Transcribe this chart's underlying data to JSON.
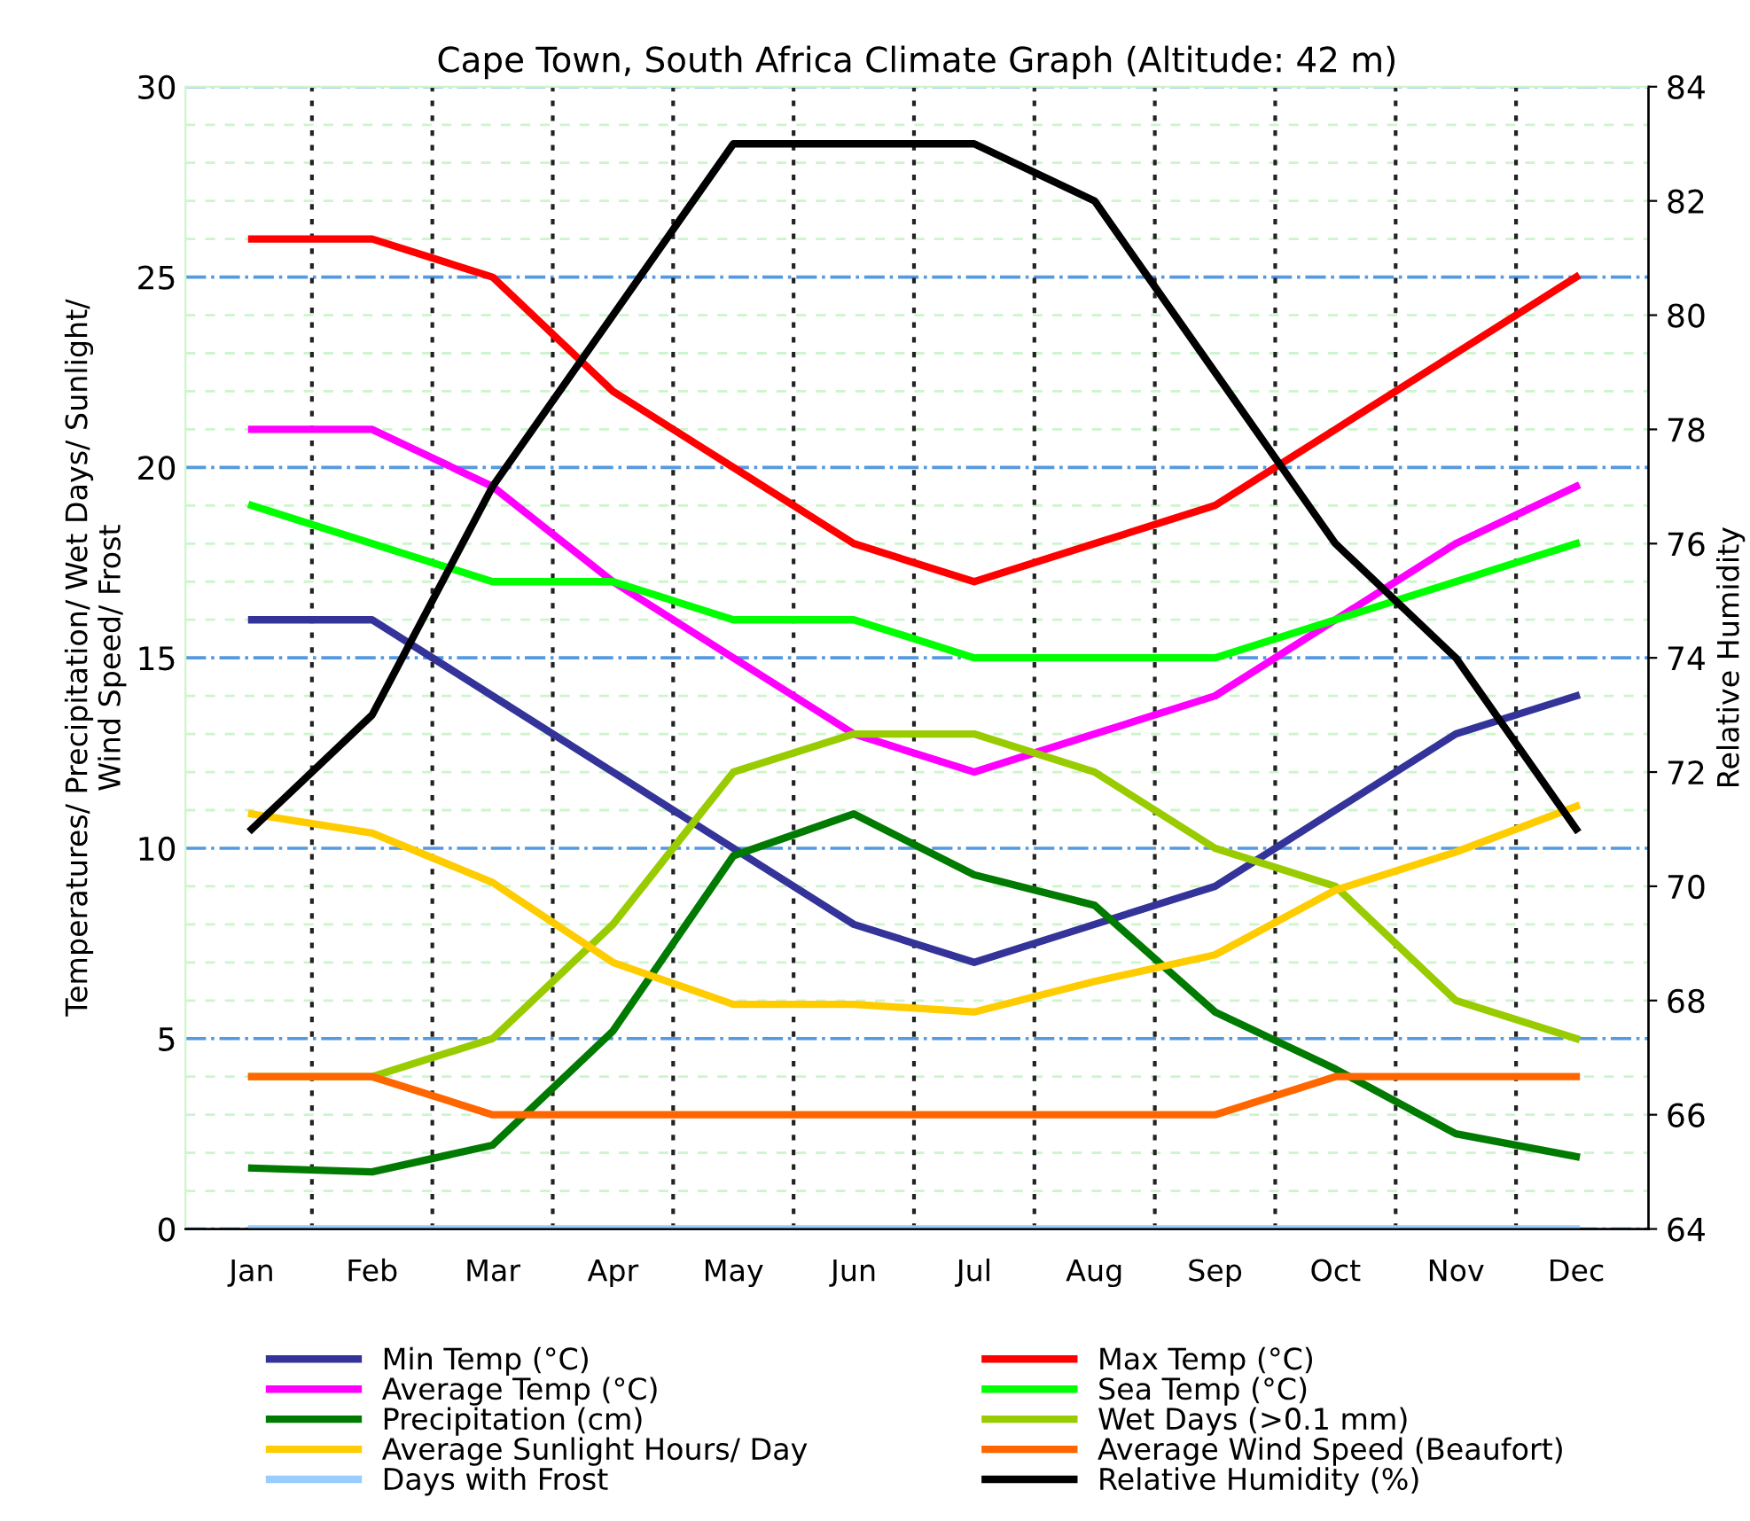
{
  "chart_data": {
    "type": "line",
    "title": "Cape Town, South Africa Climate Graph (Altitude: 42 m)",
    "ylabel": "Temperatures/ Precipitation/ Wet Days/ Sunlight/\nWind Speed/ Frost",
    "y2label": "Relative Humidity",
    "categories": [
      "Jan",
      "Feb",
      "Mar",
      "Apr",
      "May",
      "Jun",
      "Jul",
      "Aug",
      "Sep",
      "Oct",
      "Nov",
      "Dec"
    ],
    "ylim": [
      0,
      30
    ],
    "yticks": [
      0,
      5,
      10,
      15,
      20,
      25,
      30
    ],
    "y2lim": [
      64,
      84
    ],
    "y2ticks": [
      64,
      66,
      68,
      70,
      72,
      74,
      76,
      78,
      80,
      82,
      84
    ],
    "grid": true,
    "legend": "bottom",
    "marker": "none",
    "line_style": "solid",
    "series": [
      {
        "name": "Min Temp (°C)",
        "color": "#333399",
        "values": [
          16,
          16,
          14,
          12,
          10,
          8,
          7,
          8,
          9,
          11,
          13,
          14
        ]
      },
      {
        "name": "Max Temp (°C)",
        "color": "#ff0000",
        "values": [
          26,
          26,
          25,
          22,
          20,
          18,
          17,
          18,
          19,
          21,
          23,
          25
        ]
      },
      {
        "name": "Average Temp (°C)",
        "color": "#ff00ff",
        "values": [
          21,
          21,
          19.5,
          17,
          15,
          13,
          12,
          13,
          14,
          16,
          18,
          19.5
        ]
      },
      {
        "name": "Sea Temp (°C)",
        "color": "#00ff00",
        "values": [
          19,
          18,
          17,
          17,
          16,
          16,
          15,
          15,
          15,
          16,
          17,
          18
        ]
      },
      {
        "name": "Precipitation (cm)",
        "color": "#007a00",
        "values": [
          1.6,
          1.5,
          2.2,
          5.2,
          9.8,
          10.9,
          9.3,
          8.5,
          5.7,
          4.2,
          2.5,
          1.9
        ]
      },
      {
        "name": "Wet Days (>0.1 mm)",
        "color": "#99cc00",
        "values": [
          4,
          4,
          5,
          8,
          12,
          13,
          13,
          12,
          10,
          9,
          6,
          5
        ]
      },
      {
        "name": "Average Sunlight Hours/ Day",
        "color": "#ffcc00",
        "values": [
          10.9,
          10.4,
          9.1,
          7,
          5.9,
          5.9,
          5.7,
          6.5,
          7.2,
          8.9,
          9.9,
          11.1
        ]
      },
      {
        "name": "Average Wind Speed (Beaufort)",
        "color": "#ff6600",
        "values": [
          4,
          4,
          3,
          3,
          3,
          3,
          3,
          3,
          3,
          4,
          4,
          4
        ]
      },
      {
        "name": "Days with Frost",
        "color": "#99ccff",
        "values": [
          0,
          0,
          0,
          0,
          0,
          0,
          0,
          0,
          0,
          0,
          0,
          0
        ]
      },
      {
        "name": "Relative Humidity (%)",
        "color": "#000000",
        "axis": "y2",
        "values": [
          71,
          73,
          77,
          80,
          83,
          83,
          83,
          82,
          79,
          76,
          74,
          71
        ]
      }
    ]
  }
}
